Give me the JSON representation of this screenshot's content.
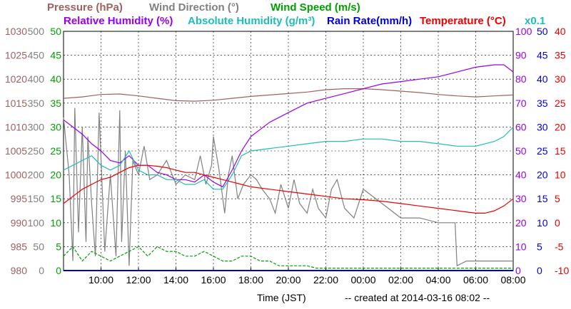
{
  "chart_data": {
    "type": "line",
    "x_range": [
      "2014-03-16 08:00",
      "2014-03-17 08:00"
    ],
    "x_ticks": [
      "10:00",
      "12:00",
      "14:00",
      "16:00",
      "18:00",
      "20:00",
      "22:00",
      "00:00",
      "02:00",
      "04:00",
      "06:00",
      "08:00"
    ],
    "xlabel": "Time (JST)",
    "footer": "-- created at 2014-03-16 08:02 --",
    "grid": true,
    "legend": {
      "row1": [
        {
          "key": "pressure",
          "label": "Pressure (hPa)"
        },
        {
          "key": "wind_dir",
          "label": "Wind Direction (°)"
        },
        {
          "key": "wind_speed",
          "label": "Wind Speed (m/s)"
        }
      ],
      "row2": [
        {
          "key": "rh",
          "label": "Relative Humidity (%)"
        },
        {
          "key": "ah",
          "label": "Absolute Humidity (g/m³)"
        },
        {
          "key": "rain",
          "label": "Rain Rate(mm/h)"
        },
        {
          "key": "temp",
          "label": "Temperature (°C)"
        },
        {
          "key": "x01",
          "label": "x0.1"
        }
      ]
    },
    "axes": {
      "pressure": {
        "side": "left",
        "range": [
          980,
          1030
        ],
        "ticks": [
          "1030",
          "1025",
          "1020",
          "1015",
          "1010",
          "1005",
          "1000",
          "995",
          "990",
          "985",
          "980"
        ],
        "color": "#a0605f"
      },
      "wind_dir": {
        "side": "left",
        "range": [
          0,
          500
        ],
        "ticks": [
          "500",
          "450",
          "400",
          "350",
          "300",
          "250",
          "200",
          "150",
          "100",
          "50",
          "0"
        ],
        "color": "#808080"
      },
      "wind_speed": {
        "side": "left",
        "range": [
          0,
          50
        ],
        "ticks": [
          "50",
          "45",
          "40",
          "35",
          "30",
          "25",
          "20",
          "15",
          "10",
          "5",
          "0"
        ],
        "color": "#00a000"
      },
      "rh": {
        "side": "right",
        "range": [
          0,
          100
        ],
        "ticks": [
          "100",
          "90",
          "80",
          "70",
          "60",
          "50",
          "40",
          "30",
          "20",
          "10",
          "0"
        ],
        "color": "#9900ee"
      },
      "rain": {
        "side": "right",
        "range": [
          0,
          50
        ],
        "ticks": [
          "50",
          "45",
          "40",
          "35",
          "30",
          "25",
          "20",
          "15",
          "10",
          "5",
          "0"
        ],
        "color": "#0000dd"
      },
      "temp": {
        "side": "right",
        "range": [
          -10,
          40
        ],
        "ticks": [
          "40",
          "35",
          "30",
          "25",
          "20",
          "15",
          "10",
          "5",
          "0",
          "-5",
          "-10"
        ],
        "color": "#ee0000"
      }
    },
    "series": [
      {
        "key": "pressure",
        "name": "Pressure (hPa)",
        "axis": "pressure",
        "color": "#a0605f",
        "t": [
          0,
          1,
          2,
          3,
          4,
          5,
          6,
          7,
          8,
          9,
          10,
          11,
          12,
          13,
          14,
          15,
          16,
          17,
          18,
          19,
          20,
          21,
          22,
          23,
          24
        ],
        "values": [
          1016.0,
          1016.3,
          1016.8,
          1016.9,
          1016.5,
          1016.0,
          1015.5,
          1015.4,
          1015.6,
          1016.0,
          1016.4,
          1016.7,
          1017.0,
          1017.3,
          1017.8,
          1018.0,
          1018.0,
          1017.8,
          1017.5,
          1017.2,
          1016.8,
          1016.5,
          1016.3,
          1016.5,
          1016.7
        ]
      },
      {
        "key": "wind_dir",
        "name": "Wind Direction (°)",
        "axis": "wind_dir",
        "color": "#808080",
        "t": [
          0,
          0.3,
          0.5,
          0.6,
          0.8,
          1.0,
          1.2,
          1.3,
          1.5,
          1.7,
          1.9,
          2.2,
          2.5,
          2.8,
          3.0,
          3.1,
          3.3,
          3.5,
          3.7,
          4.0,
          4.3,
          4.6,
          5.0,
          5.5,
          6.0,
          6.5,
          7.0,
          7.3,
          7.6,
          7.9,
          8.0,
          8.3,
          8.6,
          8.8,
          9.0,
          9.3,
          9.6,
          10.0,
          10.3,
          10.6,
          11.0,
          11.3,
          11.6,
          12.0,
          12.3,
          12.6,
          13.0,
          13.3,
          13.6,
          14.0,
          14.3,
          14.6,
          15.0,
          15.5,
          16.0,
          17.0,
          18.0,
          19.0,
          20.0,
          20.9,
          21.0,
          21.5,
          22.0,
          23.0,
          24.0
        ],
        "values": [
          320,
          200,
          20,
          340,
          80,
          300,
          60,
          280,
          140,
          30,
          330,
          40,
          200,
          30,
          335,
          60,
          250,
          10,
          230,
          200,
          260,
          190,
          200,
          230,
          180,
          200,
          190,
          240,
          180,
          220,
          280,
          210,
          120,
          200,
          240,
          150,
          180,
          200,
          190,
          170,
          150,
          120,
          180,
          130,
          190,
          140,
          120,
          170,
          130,
          110,
          170,
          190,
          130,
          110,
          170,
          140,
          110,
          110,
          100,
          100,
          10,
          20,
          20,
          20,
          20
        ]
      },
      {
        "key": "wind_speed",
        "name": "Wind Speed (m/s)",
        "axis": "wind_speed",
        "color": "#00a000",
        "t": [
          0,
          0.5,
          1,
          1.5,
          2,
          2.5,
          3,
          3.5,
          4,
          4.5,
          5,
          5.5,
          6,
          6.5,
          7,
          7.5,
          8,
          8.5,
          9,
          9.5,
          10,
          10.5,
          11,
          11.5,
          12,
          12.5,
          13,
          13.5,
          14,
          14.5,
          15,
          15.5,
          16,
          16.5,
          17,
          17.5,
          18,
          18.5,
          19,
          19.5,
          20,
          20.5,
          21,
          21.5,
          22,
          22.5,
          23,
          23.5,
          24
        ],
        "values": [
          3,
          5,
          2,
          4,
          3,
          2,
          3,
          4,
          5,
          3,
          5,
          4,
          4,
          3,
          3,
          4,
          3,
          2,
          2,
          3,
          3,
          2,
          2,
          1,
          1,
          1,
          1,
          0.5,
          0.5,
          0.5,
          0.5,
          0.5,
          0.5,
          0.5,
          0.5,
          0.5,
          0.5,
          0.5,
          0.5,
          0.5,
          0.5,
          0.5,
          0.5,
          0.5,
          0.5,
          0.5,
          0.5,
          0.5,
          0.5
        ]
      },
      {
        "key": "rh",
        "name": "Relative Humidity (%)",
        "axis": "rh",
        "color": "#9900ee",
        "t": [
          0,
          0.5,
          1,
          1.5,
          2,
          2.5,
          3,
          3.5,
          4,
          4.5,
          5,
          5.5,
          6,
          6.5,
          7,
          7.5,
          8,
          8.5,
          9,
          9.5,
          10,
          11,
          12,
          13,
          14,
          15,
          16,
          17,
          18,
          19,
          20,
          21,
          22,
          23,
          23.5,
          24
        ],
        "values": [
          63,
          60,
          57,
          53,
          50,
          46,
          45,
          48,
          44,
          44,
          41,
          40,
          38,
          38,
          37,
          40,
          37,
          35,
          42,
          50,
          56,
          62,
          66,
          70,
          72,
          74,
          76,
          78,
          79,
          80,
          81,
          83,
          85,
          86,
          86,
          83
        ]
      },
      {
        "key": "ah",
        "name": "Absolute Humidity (g/m³)",
        "axis": "wind_speed",
        "color": "#22bbbb",
        "t": [
          0,
          0.5,
          1,
          1.5,
          2,
          2.5,
          3,
          3.5,
          4,
          4.5,
          5,
          5.5,
          6,
          6.5,
          7,
          7.5,
          8,
          8.5,
          9,
          9.5,
          10,
          11,
          12,
          13,
          14,
          15,
          16,
          17,
          18,
          19,
          20,
          21,
          22,
          23,
          23.5,
          24
        ],
        "values": [
          21,
          22,
          23,
          24,
          22,
          21,
          22,
          25,
          21,
          20,
          20,
          19,
          19,
          18,
          18,
          19,
          17,
          17,
          20,
          24,
          25,
          25.5,
          26,
          26.5,
          27,
          27,
          27.5,
          27.5,
          27,
          27,
          26.5,
          26,
          26,
          27,
          28,
          30
        ]
      },
      {
        "key": "rain",
        "name": "Rain Rate(mm/h)",
        "axis": "rain",
        "color": "#0000dd",
        "t": [
          0,
          24
        ],
        "values": [
          0,
          0
        ]
      },
      {
        "key": "temp",
        "name": "Temperature (°C)",
        "axis": "temp",
        "color": "#ee0000",
        "t": [
          0,
          0.5,
          1,
          1.5,
          2,
          2.5,
          3,
          3.5,
          4,
          4.5,
          5,
          5.5,
          6,
          6.5,
          7,
          7.5,
          8,
          8.5,
          9,
          9.5,
          10,
          11,
          12,
          13,
          14,
          15,
          16,
          17,
          18,
          19,
          20,
          21,
          22,
          22.5,
          23,
          23.5,
          24
        ],
        "values": [
          4,
          5.5,
          7,
          8,
          9,
          9.5,
          10.5,
          11.5,
          12,
          12,
          11.8,
          11.5,
          11,
          10.5,
          10.5,
          10,
          9.5,
          9,
          8.5,
          8,
          7.5,
          7,
          6.5,
          6,
          5.5,
          5,
          4.8,
          4.5,
          4,
          3.5,
          3,
          2.5,
          2,
          2,
          2.5,
          3.5,
          5
        ]
      }
    ]
  }
}
